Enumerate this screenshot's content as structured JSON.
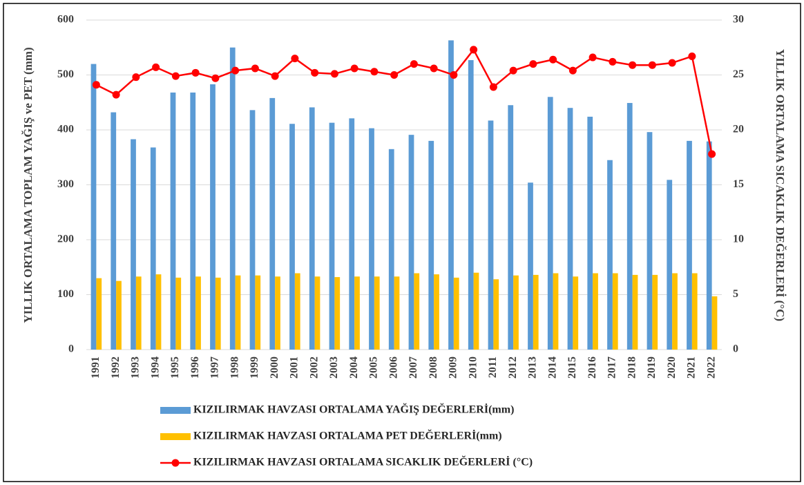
{
  "chart_data": {
    "type": "combo",
    "y_label": "YILLIK ORTALAMA TOPLAM YAĞIŞ ve PET (mm)",
    "y2_label": "YILLIK ORTALAMA SICAKLIK DEĞERLERİ (°C)",
    "categories": [
      "1991",
      "1992",
      "1993",
      "1994",
      "1995",
      "1996",
      "1997",
      "1998",
      "1999",
      "2000",
      "2001",
      "2002",
      "2003",
      "2004",
      "2005",
      "2006",
      "2007",
      "2008",
      "2009",
      "2010",
      "2011",
      "2012",
      "2013",
      "2014",
      "2015",
      "2016",
      "2017",
      "2018",
      "2019",
      "2020",
      "2021",
      "2022"
    ],
    "series": [
      {
        "name": "KIZILIRMAK HAVZASI ORTALAMA YAĞIŞ DEĞERLERİ(mm)",
        "type": "bar",
        "color": "#5b9bd5",
        "values": [
          520,
          432,
          383,
          368,
          468,
          468,
          483,
          550,
          436,
          458,
          411,
          441,
          413,
          421,
          403,
          365,
          391,
          380,
          563,
          527,
          417,
          445,
          304,
          460,
          440,
          424,
          345,
          449,
          396,
          309,
          380,
          379
        ]
      },
      {
        "name": "KIZILIRMAK HAVZASI ORTALAMA PET DEĞERLERİ(mm)",
        "type": "bar",
        "color": "#ffc000",
        "values": [
          130,
          125,
          133,
          137,
          131,
          133,
          131,
          135,
          135,
          133,
          139,
          133,
          132,
          133,
          133,
          133,
          139,
          137,
          131,
          140,
          128,
          135,
          136,
          139,
          133,
          139,
          139,
          136,
          136,
          139,
          139,
          97
        ]
      },
      {
        "name": "KIZILIRMAK HAVZASI ORTALAMA SICAKLIK DEĞERLERİ (°C)",
        "type": "line",
        "axis": "y2",
        "color": "#ff0000",
        "values": [
          24.1,
          23.2,
          24.8,
          25.7,
          24.9,
          25.2,
          24.7,
          25.4,
          25.6,
          24.9,
          26.5,
          25.2,
          25.1,
          25.6,
          25.3,
          25.0,
          26.0,
          25.6,
          25.0,
          27.3,
          23.9,
          25.4,
          26.0,
          26.4,
          25.4,
          26.6,
          26.2,
          25.9,
          25.9,
          26.1,
          26.7,
          17.8
        ]
      }
    ],
    "ylim": [
      0,
      600
    ],
    "yticks": [
      0,
      100,
      200,
      300,
      400,
      500,
      600
    ],
    "y2lim": [
      0,
      30
    ],
    "y2ticks": [
      0,
      5,
      10,
      15,
      20,
      25,
      30
    ],
    "grid": true,
    "legend": "bottom"
  }
}
